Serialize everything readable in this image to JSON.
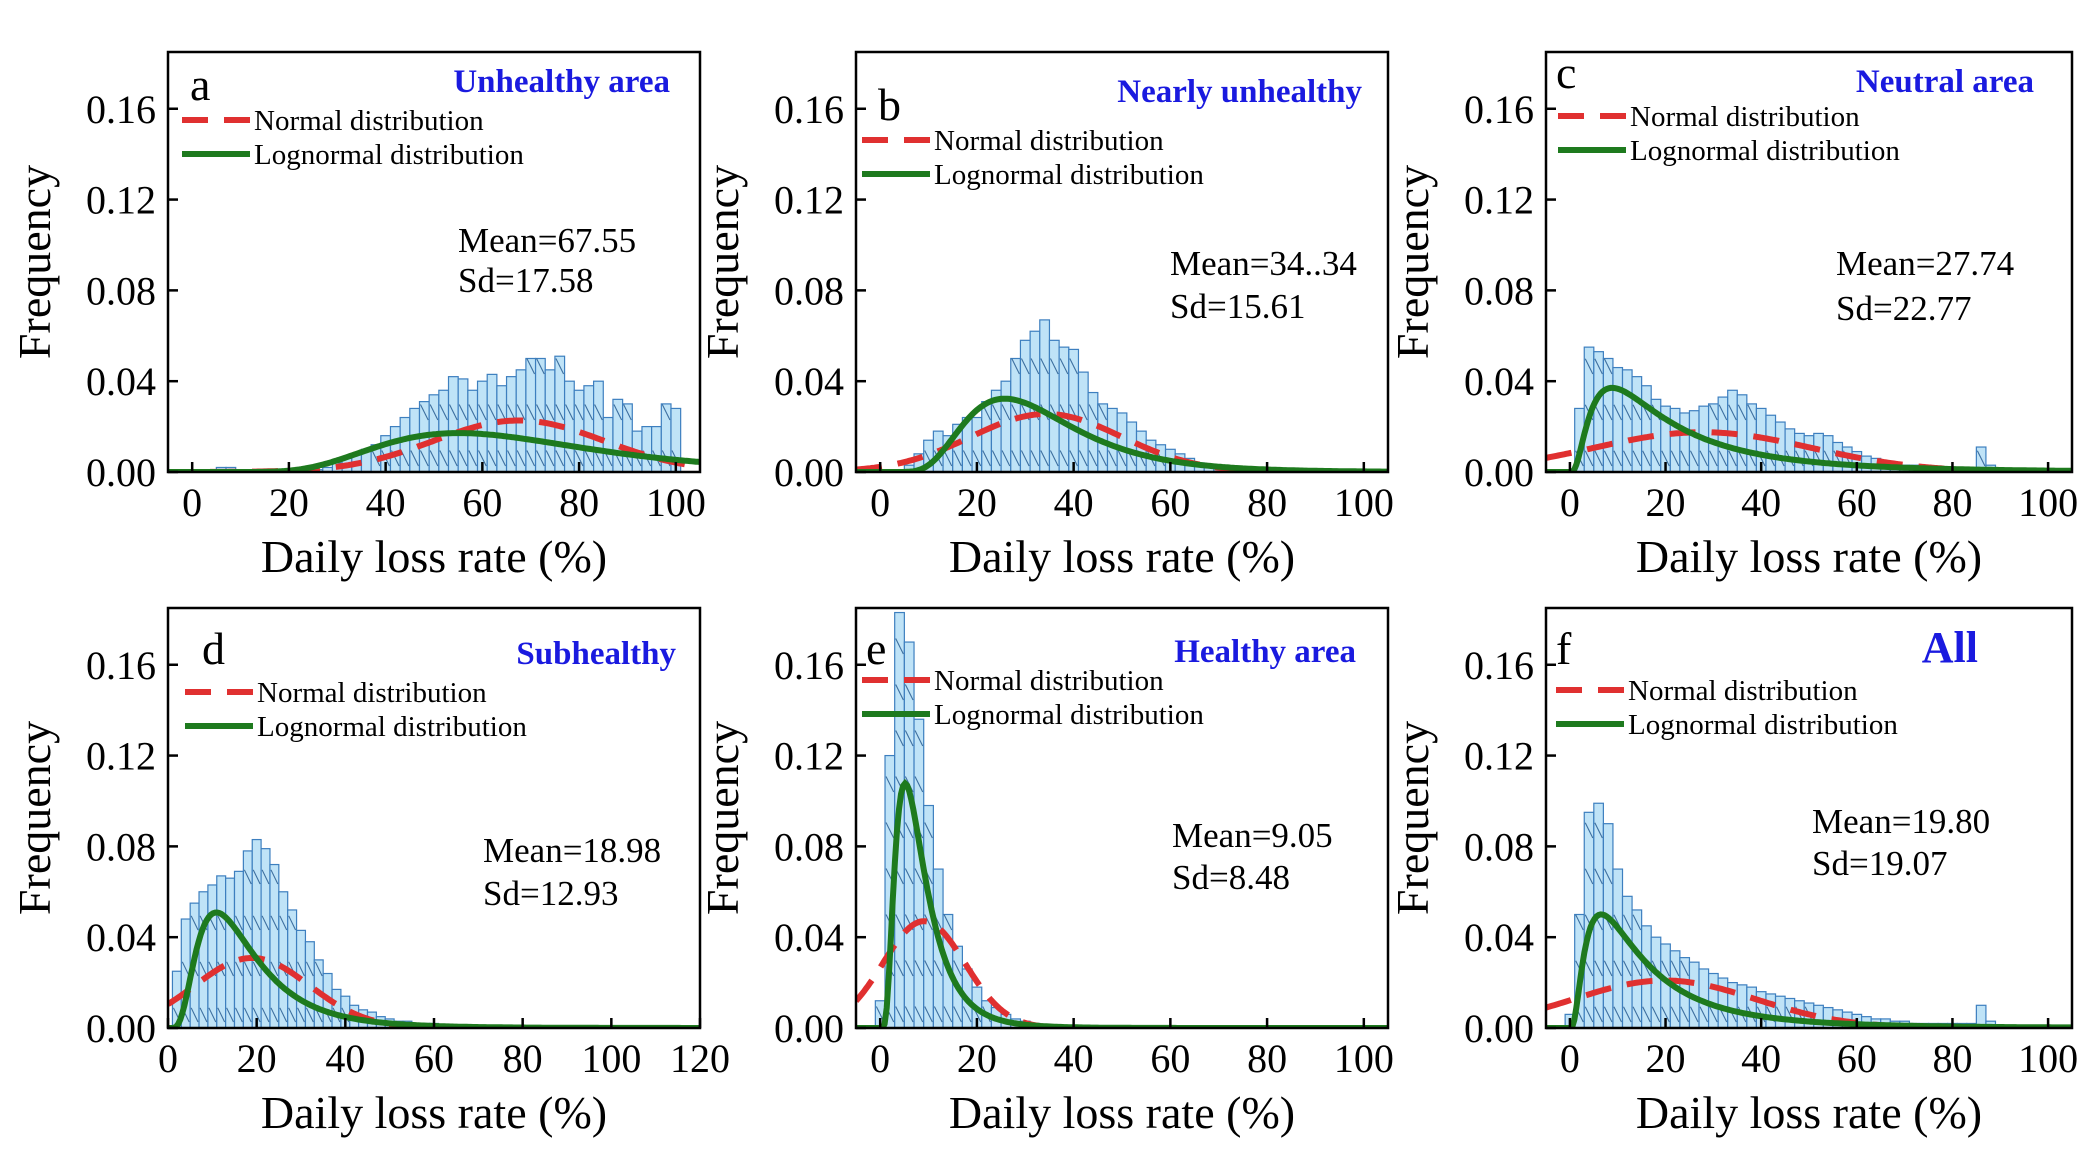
{
  "chart_data": [
    {
      "type": "bar",
      "panel_label": "a",
      "region": "Unhealthy area",
      "ylabel": "Frequency",
      "xlabel": "Daily loss rate (%)",
      "xlim": [
        -5,
        105
      ],
      "ylim": [
        0,
        0.185
      ],
      "x_ticks": [
        0,
        20,
        40,
        60,
        80,
        100
      ],
      "y_ticks": [
        "0.00",
        "0.04",
        "0.08",
        "0.12",
        "0.16"
      ],
      "bin_width": 2,
      "bins": [
        [
          6,
          0.002
        ],
        [
          8,
          0.002
        ],
        [
          26,
          0.001
        ],
        [
          28,
          0.002
        ],
        [
          30,
          0.004
        ],
        [
          32,
          0.006
        ],
        [
          34,
          0.008
        ],
        [
          36,
          0.01
        ],
        [
          38,
          0.012
        ],
        [
          40,
          0.016
        ],
        [
          42,
          0.02
        ],
        [
          44,
          0.024
        ],
        [
          46,
          0.028
        ],
        [
          48,
          0.031
        ],
        [
          50,
          0.034
        ],
        [
          52,
          0.036
        ],
        [
          54,
          0.042
        ],
        [
          56,
          0.041
        ],
        [
          58,
          0.036
        ],
        [
          60,
          0.04
        ],
        [
          62,
          0.043
        ],
        [
          64,
          0.038
        ],
        [
          66,
          0.042
        ],
        [
          68,
          0.045
        ],
        [
          70,
          0.05
        ],
        [
          72,
          0.05
        ],
        [
          74,
          0.045
        ],
        [
          76,
          0.051
        ],
        [
          78,
          0.04
        ],
        [
          80,
          0.036
        ],
        [
          82,
          0.038
        ],
        [
          84,
          0.04
        ],
        [
          86,
          0.024
        ],
        [
          88,
          0.032
        ],
        [
          90,
          0.03
        ],
        [
          92,
          0.018
        ],
        [
          94,
          0.02
        ],
        [
          96,
          0.02
        ],
        [
          98,
          0.03
        ],
        [
          100,
          0.028
        ]
      ],
      "normal": {
        "mean": 67.55,
        "sd": 17.58
      },
      "lognormal": {
        "mu": 4.1618,
        "sigma": 0.3914
      },
      "legend": [
        "Normal distribution",
        "Lognormal distribution"
      ],
      "stats": {
        "mean_label": "Mean=67.55",
        "sd_label": "Sd=17.58"
      }
    },
    {
      "type": "bar",
      "panel_label": "b",
      "region": "Nearly unhealthy",
      "ylabel": "Frequency",
      "xlabel": "Daily loss rate (%)",
      "xlim": [
        -5,
        105
      ],
      "ylim": [
        0,
        0.185
      ],
      "x_ticks": [
        0,
        20,
        40,
        60,
        80,
        100
      ],
      "y_ticks": [
        "0.00",
        "0.04",
        "0.08",
        "0.12",
        "0.16"
      ],
      "bin_width": 2,
      "bins": [
        [
          4,
          0.001
        ],
        [
          6,
          0.003
        ],
        [
          8,
          0.008
        ],
        [
          10,
          0.014
        ],
        [
          12,
          0.018
        ],
        [
          14,
          0.016
        ],
        [
          16,
          0.021
        ],
        [
          18,
          0.024
        ],
        [
          20,
          0.024
        ],
        [
          22,
          0.031
        ],
        [
          24,
          0.036
        ],
        [
          26,
          0.04
        ],
        [
          28,
          0.05
        ],
        [
          30,
          0.058
        ],
        [
          32,
          0.062
        ],
        [
          34,
          0.067
        ],
        [
          36,
          0.058
        ],
        [
          38,
          0.055
        ],
        [
          40,
          0.054
        ],
        [
          42,
          0.044
        ],
        [
          44,
          0.035
        ],
        [
          46,
          0.03
        ],
        [
          48,
          0.028
        ],
        [
          50,
          0.026
        ],
        [
          52,
          0.022
        ],
        [
          54,
          0.018
        ],
        [
          56,
          0.014
        ],
        [
          58,
          0.012
        ],
        [
          60,
          0.01
        ],
        [
          62,
          0.008
        ],
        [
          64,
          0.006
        ],
        [
          66,
          0.004
        ],
        [
          68,
          0.002
        ],
        [
          70,
          0.002
        ]
      ],
      "normal": {
        "mean": 34.34,
        "sd": 15.61
      },
      "lognormal": {
        "mu": 3.439,
        "sigma": 0.436
      },
      "legend": [
        "Normal distribution",
        "Lognormal distribution"
      ],
      "stats": {
        "mean_label": "Mean=34..34",
        "sd_label": "Sd=15.61"
      }
    },
    {
      "type": "bar",
      "panel_label": "c",
      "region": "Neutral area",
      "ylabel": "Frequency",
      "xlabel": "Daily loss rate (%)",
      "xlim": [
        -5,
        105
      ],
      "ylim": [
        0,
        0.185
      ],
      "x_ticks": [
        0,
        20,
        40,
        60,
        80,
        100
      ],
      "y_ticks": [
        "0.00",
        "0.04",
        "0.08",
        "0.12",
        "0.16"
      ],
      "bin_width": 2,
      "bins": [
        [
          2,
          0.028
        ],
        [
          4,
          0.055
        ],
        [
          6,
          0.053
        ],
        [
          8,
          0.05
        ],
        [
          10,
          0.046
        ],
        [
          12,
          0.045
        ],
        [
          14,
          0.042
        ],
        [
          16,
          0.038
        ],
        [
          18,
          0.032
        ],
        [
          20,
          0.029
        ],
        [
          22,
          0.028
        ],
        [
          24,
          0.026
        ],
        [
          26,
          0.027
        ],
        [
          28,
          0.029
        ],
        [
          30,
          0.03
        ],
        [
          32,
          0.033
        ],
        [
          34,
          0.036
        ],
        [
          36,
          0.034
        ],
        [
          38,
          0.03
        ],
        [
          40,
          0.028
        ],
        [
          42,
          0.025
        ],
        [
          44,
          0.022
        ],
        [
          46,
          0.019
        ],
        [
          48,
          0.017
        ],
        [
          50,
          0.016
        ],
        [
          52,
          0.017
        ],
        [
          54,
          0.016
        ],
        [
          56,
          0.013
        ],
        [
          58,
          0.011
        ],
        [
          60,
          0.009
        ],
        [
          62,
          0.007
        ],
        [
          64,
          0.006
        ],
        [
          66,
          0.005
        ],
        [
          68,
          0.004
        ],
        [
          70,
          0.003
        ],
        [
          72,
          0.003
        ],
        [
          74,
          0.003
        ],
        [
          76,
          0.002
        ],
        [
          78,
          0.002
        ],
        [
          80,
          0.002
        ],
        [
          82,
          0.002
        ],
        [
          84,
          0.002
        ],
        [
          86,
          0.011
        ],
        [
          88,
          0.003
        ]
      ],
      "normal": {
        "mean": 27.74,
        "sd": 22.77
      },
      "lognormal": {
        "mu": 2.9,
        "sigma": 0.85
      },
      "legend": [
        "Normal distribution",
        "Lognormal distribution"
      ],
      "stats": {
        "mean_label": "Mean=27.74",
        "sd_label": "Sd=22.77"
      }
    },
    {
      "type": "bar",
      "panel_label": "d",
      "region": "Subhealthy",
      "ylabel": "Frequency",
      "xlabel": "Daily loss rate (%)",
      "xlim": [
        0,
        120
      ],
      "ylim": [
        0,
        0.185
      ],
      "x_ticks": [
        0,
        20,
        40,
        60,
        80,
        100,
        120
      ],
      "y_ticks": [
        "0.00",
        "0.04",
        "0.08",
        "0.12",
        "0.16"
      ],
      "bin_width": 2,
      "bins": [
        [
          2,
          0.025
        ],
        [
          4,
          0.048
        ],
        [
          6,
          0.055
        ],
        [
          8,
          0.06
        ],
        [
          10,
          0.063
        ],
        [
          12,
          0.067
        ],
        [
          14,
          0.066
        ],
        [
          16,
          0.069
        ],
        [
          18,
          0.078
        ],
        [
          20,
          0.083
        ],
        [
          22,
          0.079
        ],
        [
          24,
          0.072
        ],
        [
          26,
          0.06
        ],
        [
          28,
          0.052
        ],
        [
          30,
          0.043
        ],
        [
          32,
          0.038
        ],
        [
          34,
          0.03
        ],
        [
          36,
          0.024
        ],
        [
          38,
          0.017
        ],
        [
          40,
          0.014
        ],
        [
          42,
          0.01
        ],
        [
          44,
          0.008
        ],
        [
          46,
          0.007
        ],
        [
          48,
          0.005
        ],
        [
          50,
          0.004
        ],
        [
          52,
          0.003
        ],
        [
          54,
          0.003
        ],
        [
          56,
          0.002
        ],
        [
          58,
          0.002
        ],
        [
          60,
          0.002
        ],
        [
          62,
          0.001
        ],
        [
          64,
          0.001
        ],
        [
          66,
          0.001
        ]
      ],
      "normal": {
        "mean": 18.98,
        "sd": 12.93
      },
      "lognormal": {
        "mu": 2.75,
        "sigma": 0.6
      },
      "legend": [
        "Normal distribution",
        "Lognormal distribution"
      ],
      "stats": {
        "mean_label": "Mean=18.98",
        "sd_label": "Sd=12.93"
      }
    },
    {
      "type": "bar",
      "panel_label": "e",
      "region": "Healthy area",
      "ylabel": "Frequency",
      "xlabel": "Daily loss rate (%)",
      "xlim": [
        -5,
        105
      ],
      "ylim": [
        0,
        0.185
      ],
      "x_ticks": [
        0,
        20,
        40,
        60,
        80,
        100
      ],
      "y_ticks": [
        "0.00",
        "0.04",
        "0.08",
        "0.12",
        "0.16"
      ],
      "bin_width": 2,
      "bins": [
        [
          0,
          0.012
        ],
        [
          2,
          0.12
        ],
        [
          4,
          0.183
        ],
        [
          6,
          0.17
        ],
        [
          8,
          0.136
        ],
        [
          10,
          0.098
        ],
        [
          12,
          0.07
        ],
        [
          14,
          0.05
        ],
        [
          16,
          0.036
        ],
        [
          18,
          0.026
        ],
        [
          20,
          0.018
        ],
        [
          22,
          0.012
        ],
        [
          24,
          0.009
        ],
        [
          26,
          0.006
        ],
        [
          28,
          0.004
        ],
        [
          30,
          0.003
        ],
        [
          32,
          0.002
        ],
        [
          34,
          0.001
        ],
        [
          36,
          0.001
        ]
      ],
      "normal": {
        "mean": 9.05,
        "sd": 8.48
      },
      "lognormal": {
        "mu": 2.0,
        "sigma": 0.6
      },
      "legend": [
        "Normal distribution",
        "Lognormal distribution"
      ],
      "stats": {
        "mean_label": "Mean=9.05",
        "sd_label": "Sd=8.48"
      }
    },
    {
      "type": "bar",
      "panel_label": "f",
      "region": "All",
      "ylabel": "Frequency",
      "xlabel": "Daily loss rate (%)",
      "xlim": [
        -5,
        105
      ],
      "ylim": [
        0,
        0.185
      ],
      "x_ticks": [
        0,
        20,
        40,
        60,
        80,
        100
      ],
      "y_ticks": [
        "0.00",
        "0.04",
        "0.08",
        "0.12",
        "0.16"
      ],
      "bin_width": 2,
      "bins": [
        [
          0,
          0.006
        ],
        [
          2,
          0.05
        ],
        [
          4,
          0.095
        ],
        [
          6,
          0.099
        ],
        [
          8,
          0.09
        ],
        [
          10,
          0.07
        ],
        [
          12,
          0.058
        ],
        [
          14,
          0.052
        ],
        [
          16,
          0.045
        ],
        [
          18,
          0.04
        ],
        [
          20,
          0.037
        ],
        [
          22,
          0.034
        ],
        [
          24,
          0.031
        ],
        [
          26,
          0.029
        ],
        [
          28,
          0.026
        ],
        [
          30,
          0.024
        ],
        [
          32,
          0.022
        ],
        [
          34,
          0.02
        ],
        [
          36,
          0.019
        ],
        [
          38,
          0.018
        ],
        [
          40,
          0.016
        ],
        [
          42,
          0.015
        ],
        [
          44,
          0.014
        ],
        [
          46,
          0.013
        ],
        [
          48,
          0.012
        ],
        [
          50,
          0.011
        ],
        [
          52,
          0.01
        ],
        [
          54,
          0.009
        ],
        [
          56,
          0.008
        ],
        [
          58,
          0.007
        ],
        [
          60,
          0.006
        ],
        [
          62,
          0.005
        ],
        [
          64,
          0.004
        ],
        [
          66,
          0.004
        ],
        [
          68,
          0.003
        ],
        [
          70,
          0.003
        ],
        [
          72,
          0.002
        ],
        [
          74,
          0.002
        ],
        [
          76,
          0.002
        ],
        [
          78,
          0.002
        ],
        [
          80,
          0.002
        ],
        [
          82,
          0.002
        ],
        [
          84,
          0.002
        ],
        [
          86,
          0.01
        ],
        [
          88,
          0.003
        ],
        [
          90,
          0.001
        ],
        [
          92,
          0.001
        ]
      ],
      "normal": {
        "mean": 19.8,
        "sd": 19.07
      },
      "lognormal": {
        "mu": 2.6,
        "sigma": 0.85
      },
      "legend": [
        "Normal distribution",
        "Lognormal distribution"
      ],
      "stats": {
        "mean_label": "Mean=19.80",
        "sd_label": "Sd=19.07"
      }
    }
  ],
  "colors": {
    "bar_fill": "#bfe3f7",
    "bar_edge": "#3d7fbf",
    "normal_line": "#e03030",
    "lognormal_line": "#1e7a1e",
    "region_title": "#1a1adf"
  }
}
